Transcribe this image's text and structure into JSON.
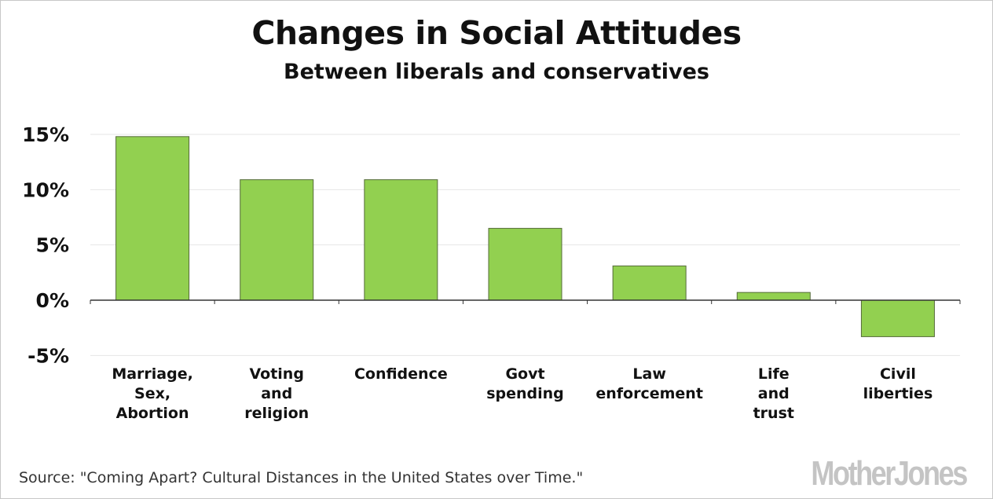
{
  "header": {
    "title": "Changes in Social Attitudes",
    "subtitle": "Between liberals and conservatives"
  },
  "footer": {
    "source": "Source: \"Coming Apart? Cultural Distances in the United States over Time.\"",
    "logo": "MotherJones"
  },
  "colors": {
    "bar_fill": "#92d050",
    "bar_stroke": "#556b3a",
    "grid": "#e6e6e6",
    "axis": "#333333",
    "text": "#111111"
  },
  "chart_data": {
    "type": "bar",
    "title": "Changes in Social Attitudes",
    "subtitle": "Between liberals and conservatives",
    "categories": [
      [
        "Marriage,",
        "Sex,",
        "Abortion"
      ],
      [
        "Voting",
        "and",
        "religion"
      ],
      [
        "Confidence"
      ],
      [
        "Govt",
        "spending"
      ],
      [
        "Law",
        "enforcement"
      ],
      [
        "Life",
        "and",
        "trust"
      ],
      [
        "Civil",
        "liberties"
      ]
    ],
    "values": [
      14.8,
      10.9,
      10.9,
      6.5,
      3.1,
      0.7,
      -3.3
    ],
    "yticks": [
      "15%",
      "10%",
      "5%",
      "0%",
      "-5%"
    ],
    "ytick_values": [
      15,
      10,
      5,
      0,
      -5
    ],
    "ylim": [
      -5,
      15
    ],
    "grid": true,
    "legend": "none"
  }
}
